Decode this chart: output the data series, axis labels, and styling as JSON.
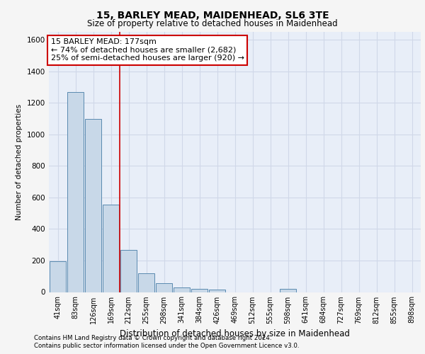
{
  "title1": "15, BARLEY MEAD, MAIDENHEAD, SL6 3TE",
  "title2": "Size of property relative to detached houses in Maidenhead",
  "xlabel": "Distribution of detached houses by size in Maidenhead",
  "ylabel": "Number of detached properties",
  "categories": [
    "41sqm",
    "83sqm",
    "126sqm",
    "169sqm",
    "212sqm",
    "255sqm",
    "298sqm",
    "341sqm",
    "384sqm",
    "426sqm",
    "469sqm",
    "512sqm",
    "555sqm",
    "598sqm",
    "641sqm",
    "684sqm",
    "727sqm",
    "769sqm",
    "812sqm",
    "855sqm",
    "898sqm"
  ],
  "values": [
    195,
    1270,
    1100,
    555,
    265,
    120,
    55,
    30,
    20,
    15,
    0,
    0,
    0,
    20,
    0,
    0,
    0,
    0,
    0,
    0,
    0
  ],
  "bar_color": "#c8d8e8",
  "bar_edge_color": "#5a8ab0",
  "grid_color": "#d0d8e8",
  "background_color": "#e8eef8",
  "red_line_x": 3.5,
  "annotation_text": "15 BARLEY MEAD: 177sqm\n← 74% of detached houses are smaller (2,682)\n25% of semi-detached houses are larger (920) →",
  "annotation_box_color": "#ffffff",
  "annotation_box_edge": "#cc0000",
  "ylim": [
    0,
    1650
  ],
  "yticks": [
    0,
    200,
    400,
    600,
    800,
    1000,
    1200,
    1400,
    1600
  ],
  "footer1": "Contains HM Land Registry data © Crown copyright and database right 2024.",
  "footer2": "Contains public sector information licensed under the Open Government Licence v3.0.",
  "fig_facecolor": "#f5f5f5"
}
